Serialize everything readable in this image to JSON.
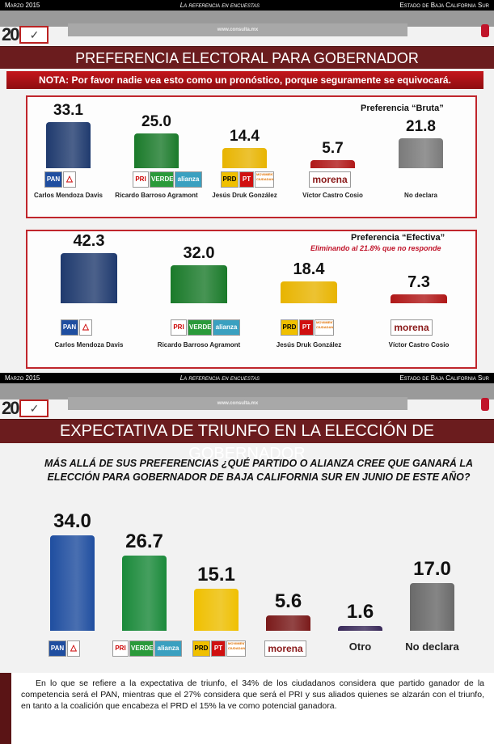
{
  "header": {
    "date": "Marzo 2015",
    "tagline": "La referencia en encuestas",
    "state": "Estado de Baja California Sur",
    "url": "www.consulta.mx",
    "logo_text": "20 AÑOS"
  },
  "slide1": {
    "title": "PREFERENCIA ELECTORAL PARA GOBERNADOR",
    "nota": "NOTA: Por favor nadie vea esto como un pronóstico, porque seguramente se equivocará."
  },
  "slide2": {
    "title": "EXPECTATIVA DE TRIUNFO EN LA ELECCIÓN DE GOBERNADOR",
    "question_line1": "MÁS ALLÁ DE SUS PREFERENCIAS ¿QUÉ PARTIDO O ALIANZA CREE QUE GANARÁ LA",
    "question_line2": "ELECCIÓN PARA GOBERNADOR DE BAJA CALIFORNIA SUR EN JUNIO DE ESTE AÑO?",
    "paragraph": "En lo que se refiere a la expectativa de triunfo, el 34% de los ciudadanos considera que partido ganador de la competencia será el PAN, mientras que el 27% considera que será el PRI y sus aliados quienes se alzarán con el triunfo, en tanto a la coalición que encabeza el PRD el 15% la ve como potencial ganadora."
  },
  "party_logos": {
    "pan": [
      "PAN",
      "△"
    ],
    "pri": [
      "PRI",
      "VERDE",
      "alianza"
    ],
    "prd": [
      "PRD",
      "PT",
      "MOVIMIENTO CIUDADANO"
    ],
    "morena": [
      "morena"
    ]
  },
  "chart_data": [
    {
      "type": "bar",
      "title": "Preferencia “Bruta”",
      "categories": [
        "Carlos Mendoza Davis",
        "Ricardo Barroso Agramont",
        "Jesús Druk González",
        "Víctor Castro Cosio",
        "No declara"
      ],
      "values": [
        33.1,
        25.0,
        14.4,
        5.7,
        21.8
      ],
      "value_labels": [
        "33.1",
        "25.0",
        "14.4",
        "5.7",
        "21.8"
      ],
      "colors": [
        "#1f3a6e",
        "#1a7a2a",
        "#e8b400",
        "#b01818",
        "#7a7a7a"
      ]
    },
    {
      "type": "bar",
      "title": "Preferencia “Efectiva”",
      "subtitle": "Eliminando al 21.8% que no responde",
      "categories": [
        "Carlos Mendoza Davis",
        "Ricardo Barroso Agramont",
        "Jesús Druk González",
        "Víctor Castro Cosio"
      ],
      "values": [
        42.3,
        32.0,
        18.4,
        7.3
      ],
      "value_labels": [
        "42.3",
        "32.0",
        "18.4",
        "7.3"
      ],
      "colors": [
        "#1f3a6e",
        "#1a7a2a",
        "#e8b400",
        "#b01818"
      ]
    },
    {
      "type": "bar",
      "title": "Expectativa de triunfo",
      "categories": [
        "PAN",
        "PRI-Verde-Alianza",
        "PRD-PT-Movimiento Ciudadano",
        "Morena",
        "Otro",
        "No declara"
      ],
      "category_labels": [
        "",
        "",
        "",
        "",
        "Otro",
        "No declara"
      ],
      "values": [
        34.0,
        26.7,
        15.1,
        5.6,
        1.6,
        17.0
      ],
      "value_labels": [
        "34.0",
        "26.7",
        "15.1",
        "5.6",
        "1.6",
        "17.0"
      ],
      "colors": [
        "#1f4ea0",
        "#1a8a3a",
        "#f0c000",
        "#7a1a1a",
        "#3a2a5a",
        "#6a6a6a"
      ]
    }
  ]
}
